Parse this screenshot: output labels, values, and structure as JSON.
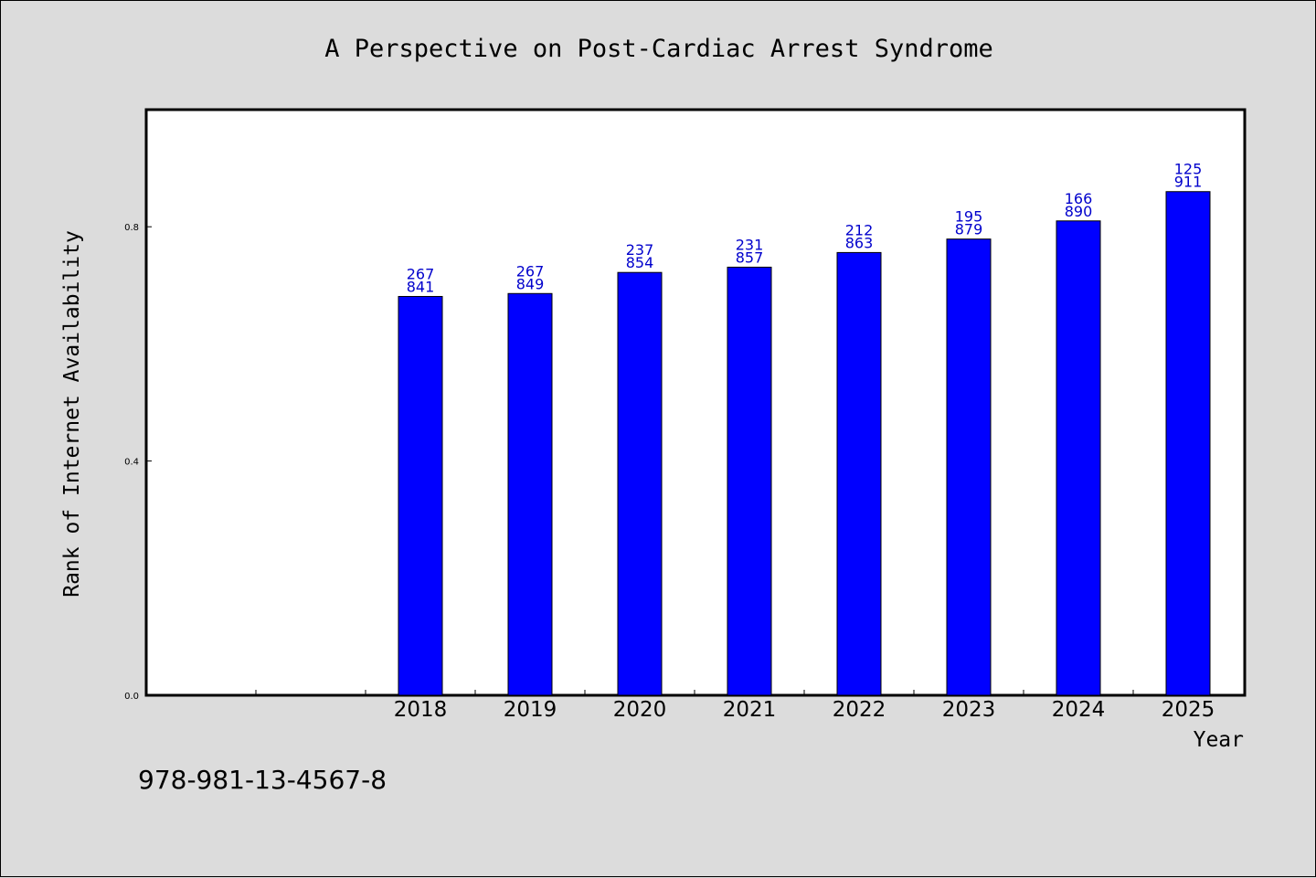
{
  "colors": {
    "background": "#dcdcdc",
    "plot_bg": "#ffffff",
    "bar": "#0000ff",
    "bar_label": "#0000cc"
  },
  "footer": {
    "isbn": "978-981-13-4567-8"
  },
  "chart_data": {
    "type": "bar",
    "title": "A Perspective on Post-Cardiac Arrest Syndrome",
    "xlabel": "Year",
    "ylabel": "Rank of Internet Availability",
    "categories": [
      "",
      "",
      "2018",
      "2019",
      "2020",
      "2021",
      "2022",
      "2023",
      "2024",
      "2025"
    ],
    "values": [
      null,
      null,
      0.681,
      0.686,
      0.722,
      0.731,
      0.756,
      0.779,
      0.81,
      0.86
    ],
    "labels": [
      [
        "",
        ""
      ],
      [
        "",
        ""
      ],
      [
        "267",
        "841"
      ],
      [
        "267",
        "849"
      ],
      [
        "237",
        "854"
      ],
      [
        "231",
        "857"
      ],
      [
        "212",
        "863"
      ],
      [
        "195",
        "879"
      ],
      [
        "166",
        "890"
      ],
      [
        "125",
        "911"
      ]
    ],
    "yticks": [
      "0.0",
      "0.4",
      "0.8"
    ],
    "ytick_values": [
      0.0,
      0.4,
      0.8
    ],
    "ylim": [
      0,
      1.0
    ],
    "grid": false,
    "legend": "none"
  }
}
